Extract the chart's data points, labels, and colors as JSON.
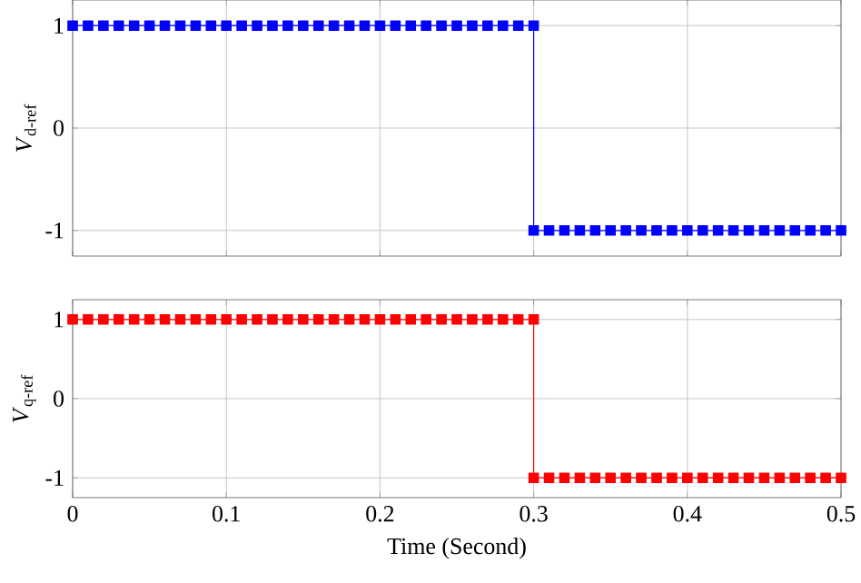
{
  "chart_data": [
    {
      "type": "line",
      "ylabel": "*V*$_{d-ref}$",
      "x": [
        0,
        0.01,
        0.02,
        0.03,
        0.04,
        0.05,
        0.06,
        0.07,
        0.08,
        0.09,
        0.1,
        0.11,
        0.12,
        0.13,
        0.14,
        0.15,
        0.16,
        0.17,
        0.18,
        0.19,
        0.2,
        0.21,
        0.22,
        0.23,
        0.24,
        0.25,
        0.26,
        0.27,
        0.28,
        0.29,
        0.3,
        0.3,
        0.31,
        0.32,
        0.33,
        0.34,
        0.35,
        0.36,
        0.37,
        0.38,
        0.39,
        0.4,
        0.41,
        0.42,
        0.43,
        0.44,
        0.45,
        0.46,
        0.47,
        0.48,
        0.49,
        0.5
      ],
      "series": [
        {
          "color": "#0000ff",
          "values": [
            1,
            1,
            1,
            1,
            1,
            1,
            1,
            1,
            1,
            1,
            1,
            1,
            1,
            1,
            1,
            1,
            1,
            1,
            1,
            1,
            1,
            1,
            1,
            1,
            1,
            1,
            1,
            1,
            1,
            1,
            1,
            -1,
            -1,
            -1,
            -1,
            -1,
            -1,
            -1,
            -1,
            -1,
            -1,
            -1,
            -1,
            -1,
            -1,
            -1,
            -1,
            -1,
            -1,
            -1,
            -1,
            -1
          ]
        }
      ],
      "xlim": [
        0,
        0.5
      ],
      "xticks": [
        0,
        0.1,
        0.2,
        0.3,
        0.4,
        0.5
      ],
      "ylim": [
        -1.25,
        1.25
      ],
      "yticks": [
        -1,
        0,
        1
      ],
      "grid": true,
      "marker": "square",
      "line_style": "solid",
      "tick_labels": "y"
    },
    {
      "type": "line",
      "ylabel": "*V*$_{q-ref}$",
      "xlabel": "Time (Second)",
      "x": [
        0,
        0.01,
        0.02,
        0.03,
        0.04,
        0.05,
        0.06,
        0.07,
        0.08,
        0.09,
        0.1,
        0.11,
        0.12,
        0.13,
        0.14,
        0.15,
        0.16,
        0.17,
        0.18,
        0.19,
        0.2,
        0.21,
        0.22,
        0.23,
        0.24,
        0.25,
        0.26,
        0.27,
        0.28,
        0.29,
        0.3,
        0.3,
        0.31,
        0.32,
        0.33,
        0.34,
        0.35,
        0.36,
        0.37,
        0.38,
        0.39,
        0.4,
        0.41,
        0.42,
        0.43,
        0.44,
        0.45,
        0.46,
        0.47,
        0.48,
        0.49,
        0.5
      ],
      "series": [
        {
          "color": "#ff0000",
          "values": [
            1,
            1,
            1,
            1,
            1,
            1,
            1,
            1,
            1,
            1,
            1,
            1,
            1,
            1,
            1,
            1,
            1,
            1,
            1,
            1,
            1,
            1,
            1,
            1,
            1,
            1,
            1,
            1,
            1,
            1,
            1,
            -1,
            -1,
            -1,
            -1,
            -1,
            -1,
            -1,
            -1,
            -1,
            -1,
            -1,
            -1,
            -1,
            -1,
            -1,
            -1,
            -1,
            -1,
            -1,
            -1,
            -1
          ]
        }
      ],
      "xlim": [
        0,
        0.5
      ],
      "xticks": [
        0,
        0.1,
        0.2,
        0.3,
        0.4,
        0.5
      ],
      "ylim": [
        -1.25,
        1.25
      ],
      "yticks": [
        -1,
        0,
        1
      ],
      "grid": true,
      "marker": "square",
      "line_style": "solid"
    }
  ]
}
